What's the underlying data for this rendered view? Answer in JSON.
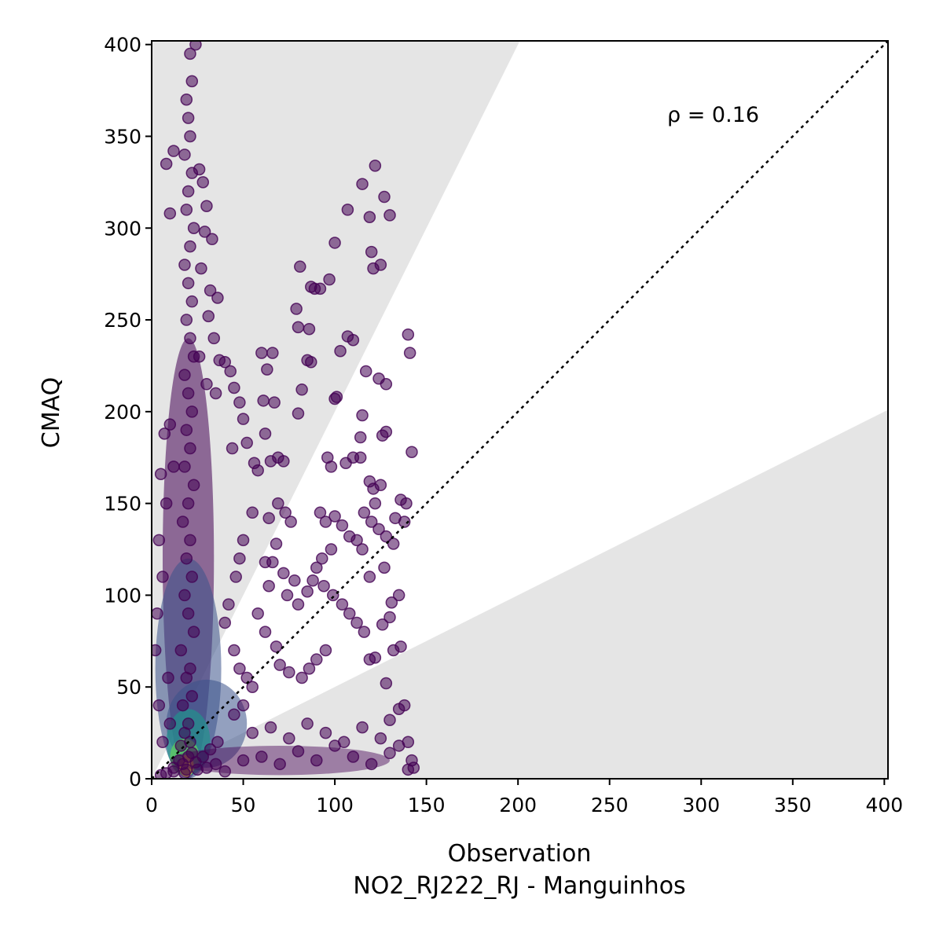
{
  "chart_data": {
    "type": "scatter",
    "title": "",
    "xlabel": "Observation",
    "xlabel_sub": "NO2_RJ222_RJ - Manguinhos",
    "ylabel": "CMAQ",
    "xlim": [
      0,
      402
    ],
    "ylim": [
      0,
      402
    ],
    "xticks": [
      0,
      50,
      100,
      150,
      200,
      250,
      300,
      350,
      400
    ],
    "yticks": [
      0,
      50,
      100,
      150,
      200,
      250,
      300,
      350,
      400
    ],
    "xtick_labels": [
      "0",
      "50",
      "100",
      "150",
      "200",
      "250",
      "300",
      "350",
      "400"
    ],
    "ytick_labels": [
      "0",
      "50",
      "100",
      "150",
      "200",
      "250",
      "300",
      "350",
      "400"
    ],
    "annotation": "ρ = 0.16",
    "grid": false,
    "reference_line": {
      "style": "dotted",
      "slope": 1,
      "color": "#000000"
    },
    "shaded_regions": [
      {
        "description": "model more than 2x observation",
        "slope_min": 2,
        "color": "#e5e5e5"
      },
      {
        "description": "model less than half observation",
        "slope_max": 0.5,
        "color": "#e5e5e5"
      }
    ],
    "colormap": [
      "#440154",
      "#3b528b",
      "#21918c",
      "#5ec962",
      "#fde725"
    ],
    "point_color": "#440154",
    "points": [
      [
        17,
        8
      ],
      [
        19,
        5
      ],
      [
        20,
        12
      ],
      [
        18,
        3
      ],
      [
        22,
        14
      ],
      [
        15,
        10
      ],
      [
        16,
        18
      ],
      [
        21,
        20
      ],
      [
        24,
        9
      ],
      [
        12,
        6
      ],
      [
        18,
        25
      ],
      [
        20,
        30
      ],
      [
        17,
        40
      ],
      [
        22,
        45
      ],
      [
        19,
        55
      ],
      [
        21,
        60
      ],
      [
        16,
        70
      ],
      [
        23,
        80
      ],
      [
        20,
        90
      ],
      [
        18,
        100
      ],
      [
        22,
        110
      ],
      [
        19,
        120
      ],
      [
        21,
        130
      ],
      [
        17,
        140
      ],
      [
        20,
        150
      ],
      [
        23,
        160
      ],
      [
        18,
        170
      ],
      [
        21,
        180
      ],
      [
        19,
        190
      ],
      [
        22,
        200
      ],
      [
        20,
        210
      ],
      [
        18,
        220
      ],
      [
        23,
        230
      ],
      [
        21,
        240
      ],
      [
        19,
        250
      ],
      [
        22,
        260
      ],
      [
        20,
        270
      ],
      [
        18,
        280
      ],
      [
        21,
        290
      ],
      [
        23,
        300
      ],
      [
        19,
        310
      ],
      [
        20,
        320
      ],
      [
        22,
        330
      ],
      [
        18,
        340
      ],
      [
        21,
        350
      ],
      [
        20,
        360
      ],
      [
        19,
        370
      ],
      [
        22,
        380
      ],
      [
        21,
        395
      ],
      [
        24,
        400
      ],
      [
        12,
        342
      ],
      [
        10,
        308
      ],
      [
        8,
        335
      ],
      [
        26,
        332
      ],
      [
        28,
        325
      ],
      [
        30,
        312
      ],
      [
        29,
        298
      ],
      [
        33,
        294
      ],
      [
        27,
        278
      ],
      [
        32,
        266
      ],
      [
        36,
        262
      ],
      [
        31,
        252
      ],
      [
        34,
        240
      ],
      [
        26,
        230
      ],
      [
        37,
        228
      ],
      [
        30,
        215
      ],
      [
        35,
        210
      ],
      [
        10,
        193
      ],
      [
        7,
        188
      ],
      [
        12,
        170
      ],
      [
        5,
        166
      ],
      [
        8,
        150
      ],
      [
        4,
        130
      ],
      [
        6,
        110
      ],
      [
        3,
        90
      ],
      [
        2,
        70
      ],
      [
        9,
        55
      ],
      [
        4,
        40
      ],
      [
        6,
        20
      ],
      [
        10,
        30
      ],
      [
        40,
        227
      ],
      [
        43,
        222
      ],
      [
        45,
        213
      ],
      [
        48,
        205
      ],
      [
        50,
        196
      ],
      [
        52,
        183
      ],
      [
        44,
        180
      ],
      [
        56,
        172
      ],
      [
        58,
        168
      ],
      [
        55,
        145
      ],
      [
        50,
        130
      ],
      [
        48,
        120
      ],
      [
        46,
        110
      ],
      [
        42,
        95
      ],
      [
        40,
        85
      ],
      [
        45,
        70
      ],
      [
        48,
        60
      ],
      [
        52,
        55
      ],
      [
        55,
        50
      ],
      [
        50,
        40
      ],
      [
        60,
        232
      ],
      [
        66,
        232
      ],
      [
        63,
        223
      ],
      [
        61,
        206
      ],
      [
        67,
        205
      ],
      [
        62,
        188
      ],
      [
        65,
        173
      ],
      [
        69,
        175
      ],
      [
        72,
        173
      ],
      [
        64,
        142
      ],
      [
        69,
        150
      ],
      [
        73,
        145
      ],
      [
        76,
        140
      ],
      [
        68,
        128
      ],
      [
        62,
        118
      ],
      [
        66,
        118
      ],
      [
        72,
        112
      ],
      [
        78,
        108
      ],
      [
        74,
        100
      ],
      [
        80,
        95
      ],
      [
        64,
        105
      ],
      [
        58,
        90
      ],
      [
        62,
        80
      ],
      [
        68,
        72
      ],
      [
        70,
        62
      ],
      [
        75,
        58
      ],
      [
        82,
        55
      ],
      [
        86,
        60
      ],
      [
        90,
        65
      ],
      [
        95,
        70
      ],
      [
        81,
        279
      ],
      [
        79,
        256
      ],
      [
        80,
        246
      ],
      [
        86,
        245
      ],
      [
        85,
        228
      ],
      [
        87,
        227
      ],
      [
        82,
        212
      ],
      [
        80,
        199
      ],
      [
        87,
        268
      ],
      [
        89,
        267
      ],
      [
        92,
        267
      ],
      [
        97,
        272
      ],
      [
        100,
        292
      ],
      [
        103,
        233
      ],
      [
        107,
        241
      ],
      [
        110,
        239
      ],
      [
        101,
        208
      ],
      [
        100,
        207
      ],
      [
        106,
        172
      ],
      [
        110,
        175
      ],
      [
        96,
        175
      ],
      [
        98,
        170
      ],
      [
        92,
        145
      ],
      [
        95,
        140
      ],
      [
        100,
        143
      ],
      [
        104,
        138
      ],
      [
        108,
        132
      ],
      [
        112,
        130
      ],
      [
        115,
        125
      ],
      [
        98,
        125
      ],
      [
        93,
        120
      ],
      [
        90,
        115
      ],
      [
        88,
        108
      ],
      [
        85,
        102
      ],
      [
        94,
        105
      ],
      [
        99,
        100
      ],
      [
        104,
        95
      ],
      [
        108,
        90
      ],
      [
        112,
        85
      ],
      [
        116,
        80
      ],
      [
        107,
        310
      ],
      [
        115,
        324
      ],
      [
        122,
        334
      ],
      [
        119,
        306
      ],
      [
        127,
        317
      ],
      [
        130,
        307
      ],
      [
        120,
        287
      ],
      [
        121,
        278
      ],
      [
        125,
        280
      ],
      [
        117,
        222
      ],
      [
        124,
        218
      ],
      [
        128,
        215
      ],
      [
        115,
        198
      ],
      [
        114,
        186
      ],
      [
        126,
        187
      ],
      [
        128,
        189
      ],
      [
        114,
        175
      ],
      [
        119,
        162
      ],
      [
        121,
        158
      ],
      [
        125,
        160
      ],
      [
        122,
        150
      ],
      [
        116,
        145
      ],
      [
        120,
        140
      ],
      [
        124,
        136
      ],
      [
        128,
        132
      ],
      [
        132,
        128
      ],
      [
        119,
        110
      ],
      [
        127,
        115
      ],
      [
        131,
        96
      ],
      [
        135,
        100
      ],
      [
        140,
        242
      ],
      [
        141,
        232
      ],
      [
        142,
        178
      ],
      [
        136,
        152
      ],
      [
        139,
        150
      ],
      [
        133,
        142
      ],
      [
        138,
        140
      ],
      [
        130,
        88
      ],
      [
        126,
        84
      ],
      [
        122,
        66
      ],
      [
        119,
        65
      ],
      [
        128,
        52
      ],
      [
        136,
        72
      ],
      [
        132,
        70
      ],
      [
        138,
        40
      ],
      [
        135,
        38
      ],
      [
        130,
        32
      ],
      [
        140,
        20
      ],
      [
        142,
        10
      ],
      [
        143,
        6
      ],
      [
        50,
        10
      ],
      [
        60,
        12
      ],
      [
        70,
        8
      ],
      [
        80,
        15
      ],
      [
        90,
        10
      ],
      [
        100,
        18
      ],
      [
        110,
        12
      ],
      [
        120,
        8
      ],
      [
        130,
        14
      ],
      [
        140,
        5
      ],
      [
        55,
        25
      ],
      [
        65,
        28
      ],
      [
        75,
        22
      ],
      [
        85,
        30
      ],
      [
        95,
        25
      ],
      [
        105,
        20
      ],
      [
        115,
        28
      ],
      [
        125,
        22
      ],
      [
        135,
        18
      ],
      [
        45,
        35
      ],
      [
        5,
        2
      ],
      [
        8,
        3
      ],
      [
        12,
        4
      ],
      [
        25,
        5
      ],
      [
        30,
        6
      ],
      [
        35,
        8
      ],
      [
        40,
        4
      ],
      [
        28,
        12
      ],
      [
        32,
        16
      ],
      [
        36,
        20
      ]
    ]
  }
}
